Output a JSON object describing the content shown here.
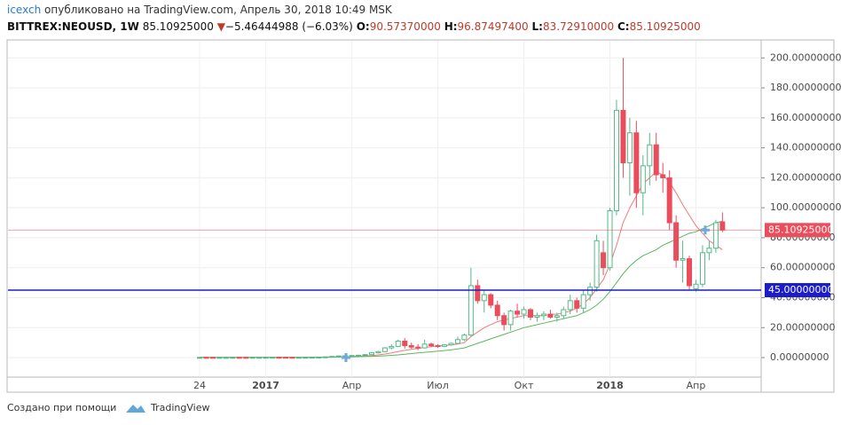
{
  "header": {
    "user": "icexch",
    "published": "опубликовано на TradingView.com, Апрель 30, 2018 10:49 MSK",
    "symbol": "BITTREX:NEOUSD, 1W",
    "last": "85.10925000",
    "arrow": "▼",
    "change": "−5.46444988 (−6.03%)",
    "o_label": "O:",
    "o": "90.57370000",
    "h_label": "H:",
    "h": "96.87497400",
    "l_label": "L:",
    "l": "83.72910000",
    "c_label": "C:",
    "c": "85.10925000"
  },
  "footer": {
    "made_with": "Создано при помощи",
    "brand": "TradingView"
  },
  "chart_data": {
    "type": "candlestick",
    "categories": [
      "24",
      null,
      null,
      null,
      null,
      null,
      null,
      null,
      null,
      null,
      "2017",
      null,
      null,
      null,
      null,
      null,
      null,
      null,
      null,
      null,
      null,
      null,
      null,
      "Апр",
      null,
      null,
      null,
      null,
      null,
      null,
      null,
      null,
      null,
      null,
      null,
      null,
      "Июл",
      null,
      null,
      null,
      null,
      null,
      null,
      null,
      null,
      null,
      null,
      null,
      null,
      "Окт",
      null,
      null,
      null,
      null,
      null,
      null,
      null,
      null,
      null,
      null,
      null,
      null,
      "2018",
      null,
      null,
      null,
      null,
      null,
      null,
      null,
      null,
      null,
      null,
      null,
      null,
      "Апр",
      null,
      null,
      null,
      null
    ],
    "open": [
      0.15,
      0.16,
      0.15,
      0.14,
      0.14,
      0.15,
      0.17,
      0.16,
      0.15,
      0.16,
      0.18,
      0.2,
      0.22,
      0.21,
      0.2,
      0.19,
      0.2,
      0.22,
      0.27,
      0.35,
      0.5,
      0.8,
      1.1,
      1.2,
      1.4,
      1.6,
      2.0,
      3.2,
      4.0,
      6.5,
      7.5,
      11,
      8,
      7,
      6.5,
      9,
      8,
      7.5,
      8.5,
      9.5,
      12,
      15,
      48,
      38,
      42,
      35,
      28,
      22,
      31,
      29,
      32,
      27,
      28,
      29,
      27,
      28,
      32,
      38,
      33,
      42,
      47,
      70,
      60,
      98,
      165,
      130,
      150,
      110,
      128,
      142,
      122,
      120,
      90,
      65,
      66,
      46,
      49,
      70,
      73,
      90.5737
    ],
    "high": [
      0.18,
      0.18,
      0.17,
      0.16,
      0.16,
      0.18,
      0.19,
      0.18,
      0.17,
      0.19,
      0.22,
      0.25,
      0.26,
      0.24,
      0.23,
      0.22,
      0.24,
      0.3,
      0.4,
      0.6,
      0.9,
      1.2,
      1.4,
      1.6,
      1.8,
      2.2,
      3.5,
      4.5,
      7,
      9,
      12,
      13,
      10,
      9,
      12,
      10,
      9,
      9,
      10,
      14,
      16,
      60,
      52,
      45,
      43,
      38,
      30,
      32,
      36,
      34,
      33,
      30,
      31,
      32,
      30,
      34,
      42,
      40,
      45,
      50,
      82,
      78,
      100,
      172,
      200,
      160,
      158,
      135,
      150,
      150,
      130,
      125,
      95,
      78,
      68,
      52,
      75,
      78,
      92,
      96.874974
    ],
    "low": [
      0.13,
      0.14,
      0.13,
      0.12,
      0.13,
      0.14,
      0.15,
      0.14,
      0.14,
      0.15,
      0.16,
      0.18,
      0.2,
      0.19,
      0.18,
      0.17,
      0.18,
      0.2,
      0.25,
      0.3,
      0.45,
      0.7,
      0.9,
      1.0,
      1.2,
      1.4,
      1.8,
      2.8,
      3.5,
      5.5,
      7,
      6,
      6,
      5,
      6,
      7,
      6.5,
      7,
      8,
      9,
      11,
      14,
      36,
      30,
      33,
      25,
      18,
      18,
      27,
      26,
      25,
      24,
      25,
      26,
      24,
      26,
      29,
      30,
      30,
      38,
      44,
      55,
      58,
      95,
      120,
      108,
      100,
      95,
      115,
      118,
      110,
      85,
      60,
      50,
      45,
      44,
      47,
      65,
      70,
      83.7291
    ],
    "close": [
      0.16,
      0.15,
      0.14,
      0.14,
      0.15,
      0.17,
      0.16,
      0.15,
      0.16,
      0.18,
      0.2,
      0.22,
      0.21,
      0.2,
      0.19,
      0.2,
      0.22,
      0.27,
      0.35,
      0.5,
      0.8,
      1.1,
      1.2,
      1.4,
      1.6,
      2.0,
      3.2,
      4.0,
      6.5,
      7.5,
      11,
      8,
      7,
      6.5,
      9,
      8,
      7.5,
      8.5,
      9.5,
      12,
      15,
      48,
      38,
      42,
      35,
      28,
      22,
      31,
      29,
      32,
      27,
      28,
      29,
      27,
      28,
      32,
      38,
      33,
      42,
      47,
      78,
      60,
      98,
      165,
      130,
      150,
      110,
      128,
      142,
      122,
      120,
      90,
      65,
      66,
      48,
      49,
      70,
      73,
      90,
      85.10925
    ],
    "up_color": "#53b987",
    "down_color": "#eb4d5c",
    "series": [
      {
        "color": "#f07a7a",
        "values": [
          0.15,
          0.15,
          0.15,
          0.15,
          0.15,
          0.15,
          0.16,
          0.16,
          0.16,
          0.16,
          0.17,
          0.18,
          0.19,
          0.2,
          0.2,
          0.2,
          0.2,
          0.22,
          0.25,
          0.3,
          0.38,
          0.5,
          0.62,
          0.75,
          0.9,
          1.1,
          1.4,
          1.8,
          2.4,
          3.1,
          4,
          4.8,
          5.5,
          6.1,
          6.8,
          7.3,
          7.7,
          8,
          8.5,
          9,
          10,
          14,
          17,
          20,
          22,
          24,
          25,
          26,
          27,
          28,
          28,
          28,
          28,
          29,
          29,
          30,
          31,
          33,
          36,
          40,
          46,
          52,
          62,
          75,
          90,
          100,
          108,
          116,
          120,
          124,
          122,
          117,
          110,
          102,
          95,
          88,
          83,
          78,
          75,
          72
        ]
      },
      {
        "color": "#5cb85c",
        "values": [
          0.15,
          0.15,
          0.15,
          0.15,
          0.15,
          0.15,
          0.15,
          0.15,
          0.15,
          0.15,
          0.16,
          0.16,
          0.17,
          0.17,
          0.18,
          0.18,
          0.19,
          0.2,
          0.22,
          0.25,
          0.3,
          0.36,
          0.43,
          0.5,
          0.6,
          0.72,
          0.86,
          1.0,
          1.2,
          1.5,
          1.8,
          2.2,
          2.7,
          3.1,
          3.5,
          3.9,
          4.3,
          4.7,
          5.2,
          5.8,
          6.5,
          8,
          9.5,
          11,
          12.5,
          14,
          15.5,
          17,
          18.5,
          20,
          21,
          22,
          23,
          24,
          25,
          26,
          27,
          28,
          30,
          32,
          35,
          39,
          44,
          50,
          56,
          61,
          65,
          68,
          70,
          72,
          75,
          77,
          79,
          81,
          83,
          84,
          86,
          88,
          90,
          91
        ]
      }
    ],
    "hlines": [
      {
        "value": 45,
        "label": "45.00000000",
        "color": "#1c1cc8"
      },
      {
        "value": 85.10925,
        "label": "85.10925000",
        "color": "#eb4d5c"
      }
    ],
    "ylim": [
      -13,
      212
    ],
    "yticks": [
      {
        "value": 0,
        "label": "0.00000000"
      },
      {
        "value": 20,
        "label": "20.00000000"
      },
      {
        "value": 40,
        "label": "40.00000000"
      },
      {
        "value": 60,
        "label": "60.00000000"
      },
      {
        "value": 80,
        "label": "80.00000000"
      },
      {
        "value": 100,
        "label": "100.00000000"
      },
      {
        "value": 120,
        "label": "120.00000000"
      },
      {
        "value": 140,
        "label": "140.00000000"
      },
      {
        "value": 160,
        "label": "160.00000000"
      },
      {
        "value": 180,
        "label": "180.00000000"
      },
      {
        "value": 200,
        "label": "200.00000000"
      }
    ],
    "grid": true
  }
}
